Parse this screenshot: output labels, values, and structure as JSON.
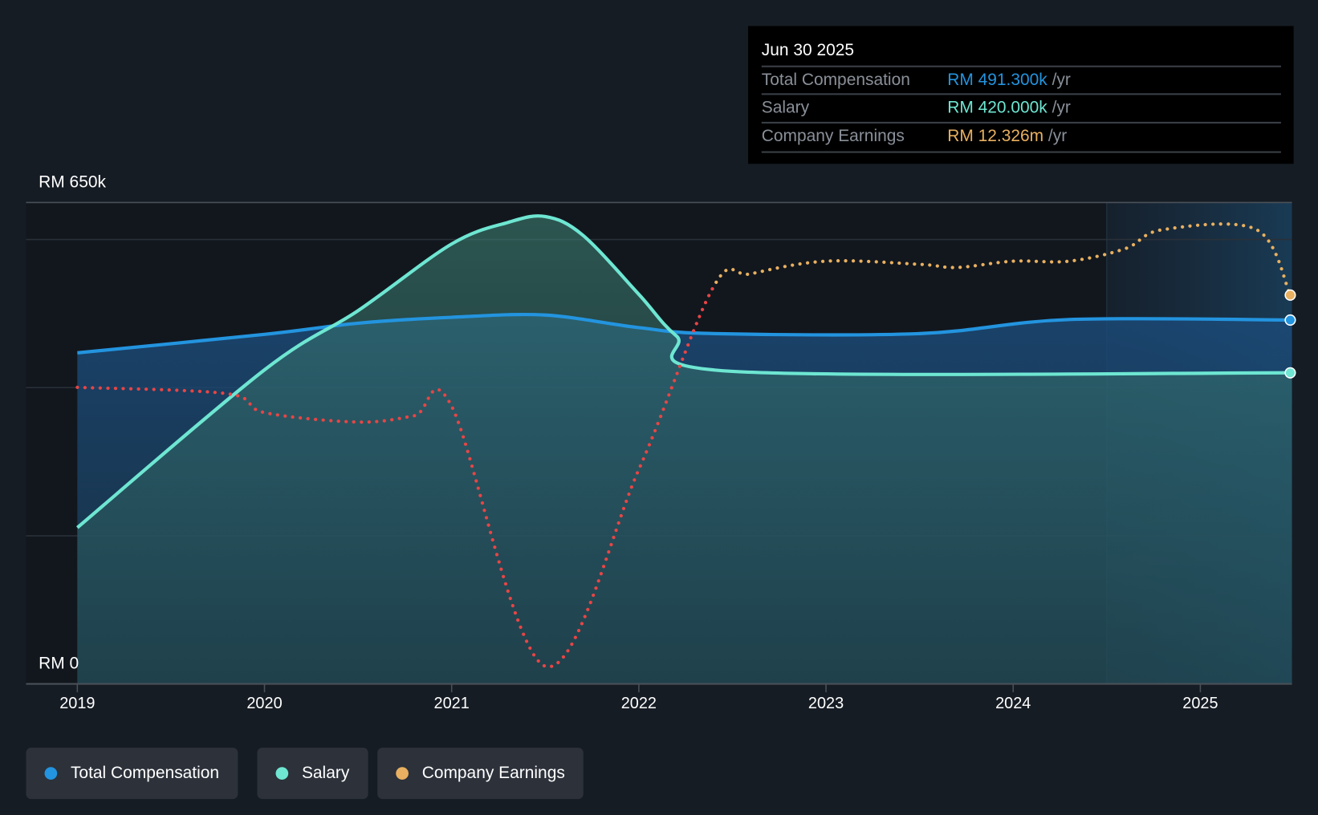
{
  "tooltip": {
    "date": "Jun 30 2025",
    "rows": [
      {
        "label": "Total Compensation",
        "value": "RM 491.300k",
        "unit": " /yr",
        "color": "#2394df"
      },
      {
        "label": "Salary",
        "value": "RM 420.000k",
        "unit": " /yr",
        "color": "#6ee6d2"
      },
      {
        "label": "Company Earnings",
        "value": "RM 12.326m",
        "unit": " /yr",
        "color": "#e8b060"
      }
    ]
  },
  "legend": [
    {
      "label": "Total Compensation",
      "color": "#2394df"
    },
    {
      "label": "Salary",
      "color": "#6ee6d2"
    },
    {
      "label": "Company Earnings",
      "color": "#e8b060"
    }
  ],
  "chart_data": {
    "type": "line",
    "y_top_label": "RM 650k",
    "y_bottom_label": "RM 0",
    "ylim": [
      0,
      650
    ],
    "yunit": "RM k",
    "xlim": [
      2018.73,
      2025.5
    ],
    "x_ticks": [
      "2019",
      "2020",
      "2021",
      "2022",
      "2023",
      "2024",
      "2025"
    ],
    "forecast_region": [
      2024.5,
      2025.5
    ],
    "series": [
      {
        "name": "Total Compensation",
        "color": "#2394df",
        "x": [
          2019,
          2020,
          2020.5,
          2021,
          2021.5,
          2022,
          2022.4,
          2023.5,
          2024.3,
          2025.5
        ],
        "values": [
          447,
          472,
          487,
          495,
          498,
          481,
          473,
          473,
          492,
          491.3
        ]
      },
      {
        "name": "Salary",
        "color": "#6ee6d2",
        "x": [
          2019,
          2020,
          2020.5,
          2021,
          2021.3,
          2021.5,
          2021.7,
          2022,
          2022.2,
          2022.5,
          2025.5
        ],
        "values": [
          211,
          424,
          504,
          594,
          623,
          631,
          606,
          526,
          470,
          422,
          420
        ]
      },
      {
        "name": "Company Earnings",
        "unit": "RM m",
        "color": "#e8b060",
        "negative_color": "#e84545",
        "ylim": [
          0,
          15.26
        ],
        "x": [
          2019,
          2019.8,
          2020,
          2020.5,
          2020.8,
          2021,
          2021.5,
          2022,
          2022.4,
          2022.6,
          2023,
          2023.5,
          2023.7,
          2024,
          2024.3,
          2024.6,
          2024.8,
          2025.3,
          2025.5
        ],
        "values": [
          9.4,
          9.2,
          8.6,
          8.3,
          8.5,
          8.8,
          0.56,
          6.8,
          12.6,
          13.0,
          13.4,
          13.3,
          13.2,
          13.4,
          13.4,
          13.8,
          14.4,
          14.4,
          12.326
        ]
      }
    ]
  }
}
